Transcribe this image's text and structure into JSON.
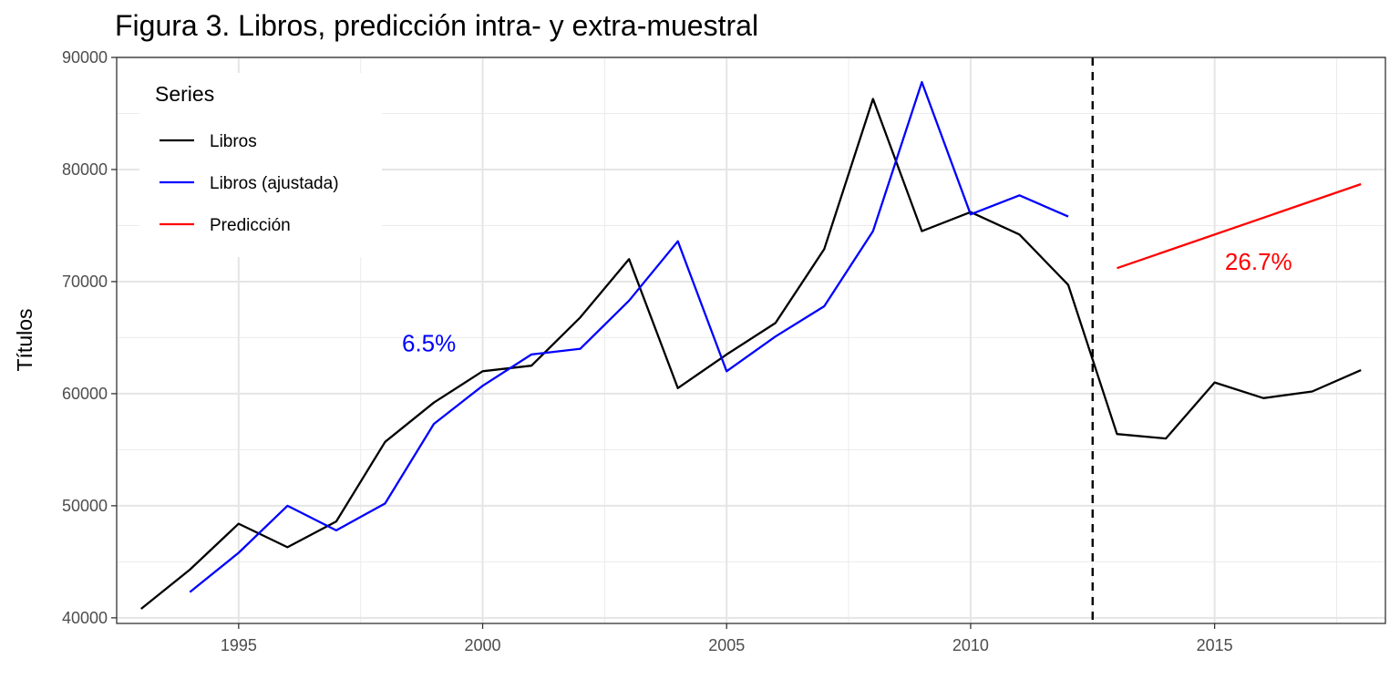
{
  "chart_data": {
    "type": "line",
    "title": "Figura 3. Libros, predicción intra- y extra-muestral",
    "xlabel": "",
    "ylabel": "Títulos",
    "xlim": [
      1992.5,
      2018.5
    ],
    "ylim": [
      39500,
      90000
    ],
    "x_ticks": [
      1995,
      2000,
      2005,
      2010,
      2015
    ],
    "y_ticks": [
      40000,
      50000,
      60000,
      70000,
      80000,
      90000
    ],
    "grid": true,
    "legend": {
      "title": "Series",
      "position": "top-left",
      "entries": [
        "Libros",
        "Libros (ajustada)",
        "Predicción"
      ]
    },
    "vline": {
      "x": 2012.5,
      "style": "dashed",
      "color": "#000000"
    },
    "series": [
      {
        "name": "Libros",
        "color": "#000000",
        "x": [
          1993,
          1994,
          1995,
          1996,
          1997,
          1998,
          1999,
          2000,
          2001,
          2002,
          2003,
          2004,
          2005,
          2006,
          2007,
          2008,
          2009,
          2010,
          2011,
          2012,
          2013,
          2014,
          2015,
          2016,
          2017,
          2018
        ],
        "y": [
          40800,
          44300,
          48400,
          46300,
          48600,
          55700,
          59200,
          62000,
          62500,
          66800,
          72000,
          60500,
          63500,
          66300,
          72900,
          86300,
          74500,
          76200,
          74200,
          69700,
          56400,
          56000,
          61000,
          59600,
          60200,
          62100
        ]
      },
      {
        "name": "Libros (ajustada)",
        "color": "#0000ff",
        "x": [
          1994,
          1995,
          1996,
          1997,
          1998,
          1999,
          2000,
          2001,
          2002,
          2003,
          2004,
          2005,
          2006,
          2007,
          2008,
          2009,
          2010,
          2011,
          2012
        ],
        "y": [
          42300,
          45800,
          50000,
          47800,
          50200,
          57300,
          60700,
          63500,
          64000,
          68300,
          73600,
          62000,
          65100,
          67800,
          74500,
          87800,
          76000,
          77700,
          75800
        ]
      },
      {
        "name": "Predicción",
        "color": "#ff0000",
        "x": [
          2013,
          2018
        ],
        "y": [
          71200,
          78700
        ]
      }
    ],
    "annotations": [
      {
        "text": "6.5%",
        "x": 1998.9,
        "y": 64500,
        "color": "#0000ff"
      },
      {
        "text": "26.7%",
        "x": 2015.9,
        "y": 71800,
        "color": "#ff0000"
      }
    ]
  }
}
